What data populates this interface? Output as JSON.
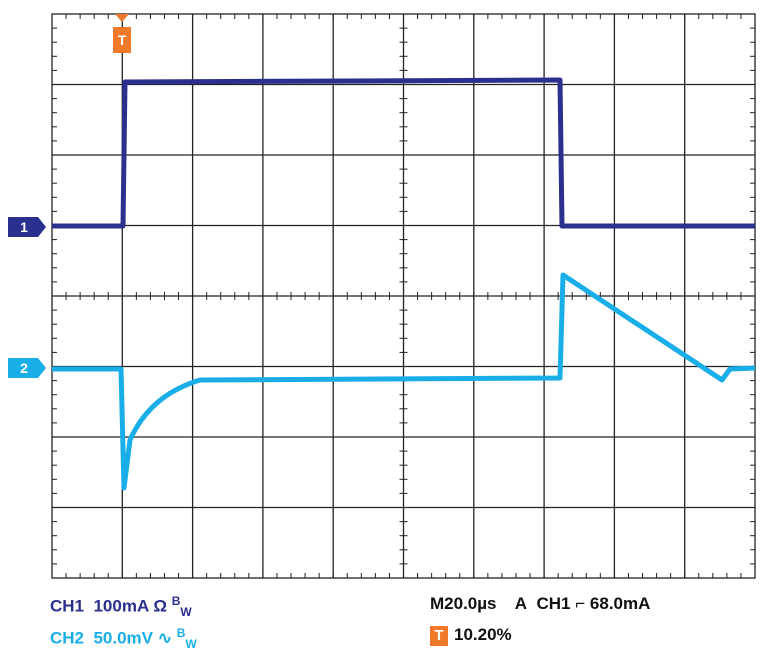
{
  "channels": [
    {
      "marker": "1",
      "label": "CH1",
      "scale": "100mA",
      "coupling": "Ω",
      "bandwidth": "B",
      "bandwidth_sub": "W"
    },
    {
      "marker": "2",
      "label": "CH2",
      "scale": "50.0mV",
      "coupling": "∿",
      "bandwidth": "B",
      "bandwidth_sub": "W"
    }
  ],
  "trigger": {
    "marker": "T",
    "timebase": "M20.0µs",
    "mode": "A",
    "source": "CH1",
    "slope": "⌐",
    "level": "68.0mA",
    "position": "10.20%"
  }
}
